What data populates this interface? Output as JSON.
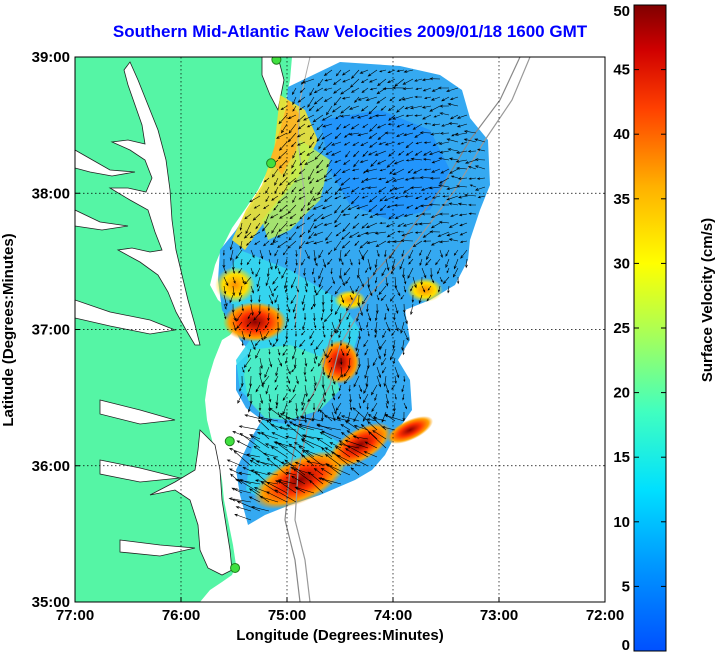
{
  "title": "Southern Mid-Atlantic Raw Velocities 2009/01/18 1600 GMT",
  "x_axis": {
    "label": "Longitude (Degrees:Minutes)",
    "range": [
      -77,
      -72
    ],
    "ticks": [
      {
        "value": -77,
        "label": "77:00"
      },
      {
        "value": -76,
        "label": "76:00"
      },
      {
        "value": -75,
        "label": "75:00"
      },
      {
        "value": -74,
        "label": "74:00"
      },
      {
        "value": -73,
        "label": "73:00"
      },
      {
        "value": -72,
        "label": "72:00"
      }
    ]
  },
  "y_axis": {
    "label": "Latitude (Degrees:Minutes)",
    "range": [
      35,
      39
    ],
    "ticks": [
      {
        "value": 39,
        "label": "39:00"
      },
      {
        "value": 38,
        "label": "38:00"
      },
      {
        "value": 37,
        "label": "37:00"
      },
      {
        "value": 36,
        "label": "36:00"
      },
      {
        "value": 35,
        "label": "35:00"
      }
    ]
  },
  "colorbar": {
    "label": "Surface Velocity (cm/s)",
    "range": [
      0,
      50
    ],
    "ticks": [
      0,
      5,
      10,
      15,
      20,
      25,
      30,
      35,
      40,
      45,
      50
    ]
  },
  "grid": true,
  "colors": {
    "land": "#55f5a5",
    "title": "#0000ff"
  },
  "stations": [
    {
      "lon": -75.1,
      "lat": 38.98
    },
    {
      "lon": -75.15,
      "lat": 38.22
    },
    {
      "lon": -75.54,
      "lat": 36.18
    },
    {
      "lon": -75.49,
      "lat": 35.25
    }
  ]
}
